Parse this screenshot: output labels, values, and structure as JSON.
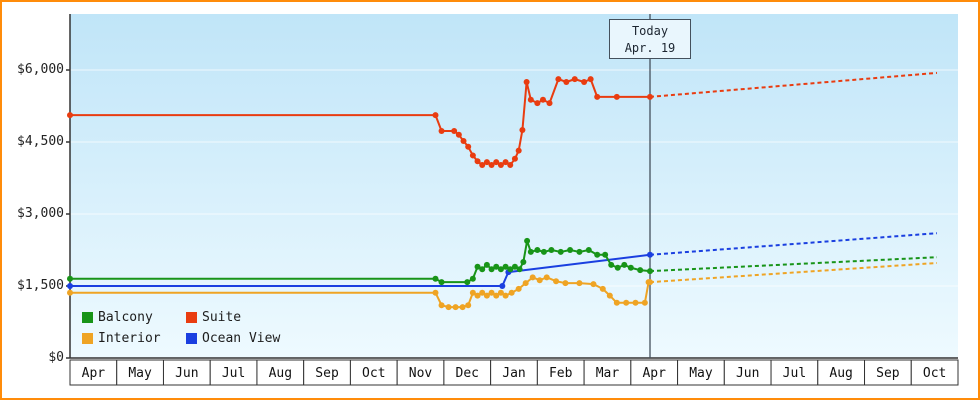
{
  "chart_data": {
    "type": "line",
    "x_labels": [
      "Apr",
      "May",
      "Jun",
      "Jul",
      "Aug",
      "Sep",
      "Oct",
      "Nov",
      "Dec",
      "Jan",
      "Feb",
      "Mar",
      "Apr",
      "May",
      "Jun",
      "Jul",
      "Aug",
      "Sep",
      "Oct"
    ],
    "y_ticks": [
      {
        "value": 0,
        "label": "$0"
      },
      {
        "value": 1500,
        "label": "$1,500"
      },
      {
        "value": 3000,
        "label": "$3,000"
      },
      {
        "value": 4500,
        "label": "$4,500"
      },
      {
        "value": 6000,
        "label": "$6,000"
      }
    ],
    "ylim": [
      0,
      7200
    ],
    "grid": "subtle-horizontal",
    "legend_position": "bottom-left",
    "today": {
      "m": 11.91,
      "line1": "Today",
      "line2": "Apr. 19"
    },
    "series": [
      {
        "name": "Interior",
        "color": "#efa424",
        "points": [
          [
            -0.5,
            1360
          ],
          [
            7.32,
            1360
          ],
          [
            7.45,
            1100
          ],
          [
            7.6,
            1060
          ],
          [
            7.75,
            1060
          ],
          [
            7.9,
            1060
          ],
          [
            8.02,
            1100
          ],
          [
            8.12,
            1360
          ],
          [
            8.22,
            1300
          ],
          [
            8.32,
            1360
          ],
          [
            8.42,
            1300
          ],
          [
            8.52,
            1360
          ],
          [
            8.62,
            1300
          ],
          [
            8.72,
            1360
          ],
          [
            8.82,
            1300
          ],
          [
            8.95,
            1360
          ],
          [
            9.1,
            1440
          ],
          [
            9.25,
            1560
          ],
          [
            9.4,
            1680
          ],
          [
            9.55,
            1620
          ],
          [
            9.7,
            1680
          ],
          [
            9.9,
            1600
          ],
          [
            10.1,
            1560
          ],
          [
            10.4,
            1560
          ],
          [
            10.7,
            1540
          ],
          [
            10.9,
            1440
          ],
          [
            11.05,
            1300
          ],
          [
            11.2,
            1150
          ],
          [
            11.4,
            1150
          ],
          [
            11.6,
            1150
          ],
          [
            11.8,
            1150
          ],
          [
            11.88,
            1580
          ],
          [
            11.91,
            1580
          ]
        ],
        "forecast": [
          [
            11.91,
            1580
          ],
          [
            18.05,
            1980
          ]
        ]
      },
      {
        "name": "Ocean View",
        "color": "#1a3fe0",
        "points": [
          [
            -0.5,
            1500
          ],
          [
            8.75,
            1500
          ],
          [
            8.88,
            1790
          ],
          [
            11.91,
            2150
          ]
        ],
        "forecast": [
          [
            11.91,
            2150
          ],
          [
            18.05,
            2600
          ]
        ]
      },
      {
        "name": "Balcony",
        "color": "#189418",
        "points": [
          [
            -0.5,
            1650
          ],
          [
            7.32,
            1650
          ],
          [
            7.45,
            1580
          ],
          [
            8.0,
            1580
          ],
          [
            8.12,
            1650
          ],
          [
            8.22,
            1900
          ],
          [
            8.32,
            1850
          ],
          [
            8.42,
            1940
          ],
          [
            8.52,
            1850
          ],
          [
            8.62,
            1900
          ],
          [
            8.72,
            1850
          ],
          [
            8.82,
            1900
          ],
          [
            8.92,
            1850
          ],
          [
            9.02,
            1900
          ],
          [
            9.12,
            1850
          ],
          [
            9.2,
            2000
          ],
          [
            9.28,
            2440
          ],
          [
            9.36,
            2210
          ],
          [
            9.5,
            2250
          ],
          [
            9.64,
            2210
          ],
          [
            9.8,
            2250
          ],
          [
            10.0,
            2210
          ],
          [
            10.2,
            2250
          ],
          [
            10.4,
            2210
          ],
          [
            10.6,
            2250
          ],
          [
            10.78,
            2150
          ],
          [
            10.95,
            2150
          ],
          [
            11.08,
            1940
          ],
          [
            11.22,
            1880
          ],
          [
            11.36,
            1940
          ],
          [
            11.5,
            1880
          ],
          [
            11.7,
            1830
          ],
          [
            11.91,
            1810
          ]
        ],
        "forecast": [
          [
            11.91,
            1810
          ],
          [
            18.05,
            2100
          ]
        ]
      },
      {
        "name": "Suite",
        "color": "#e93c10",
        "points": [
          [
            -0.5,
            5060
          ],
          [
            7.32,
            5060
          ],
          [
            7.45,
            4730
          ],
          [
            7.72,
            4730
          ],
          [
            7.82,
            4650
          ],
          [
            7.92,
            4520
          ],
          [
            8.02,
            4400
          ],
          [
            8.12,
            4220
          ],
          [
            8.22,
            4100
          ],
          [
            8.32,
            4020
          ],
          [
            8.42,
            4080
          ],
          [
            8.52,
            4020
          ],
          [
            8.62,
            4080
          ],
          [
            8.72,
            4020
          ],
          [
            8.82,
            4080
          ],
          [
            8.92,
            4020
          ],
          [
            9.02,
            4150
          ],
          [
            9.1,
            4320
          ],
          [
            9.18,
            4750
          ],
          [
            9.27,
            5750
          ],
          [
            9.36,
            5380
          ],
          [
            9.5,
            5310
          ],
          [
            9.62,
            5380
          ],
          [
            9.76,
            5310
          ],
          [
            9.95,
            5810
          ],
          [
            10.12,
            5750
          ],
          [
            10.3,
            5810
          ],
          [
            10.5,
            5750
          ],
          [
            10.64,
            5810
          ],
          [
            10.78,
            5440
          ],
          [
            11.2,
            5440
          ],
          [
            11.91,
            5440
          ]
        ],
        "forecast": [
          [
            11.91,
            5440
          ],
          [
            18.05,
            5940
          ]
        ]
      }
    ],
    "legend": [
      {
        "label": "Balcony",
        "color": "#189418"
      },
      {
        "label": "Suite",
        "color": "#e93c10"
      },
      {
        "label": "Interior",
        "color": "#efa424"
      },
      {
        "label": "Ocean View",
        "color": "#1a3fe0"
      }
    ],
    "colors": {
      "plot_bg_top": "#c0e5f8",
      "plot_bg_bottom": "#eefaff",
      "axis": "#333333",
      "today_line": "#44505c",
      "frame_border": "#ff8c0a"
    }
  }
}
